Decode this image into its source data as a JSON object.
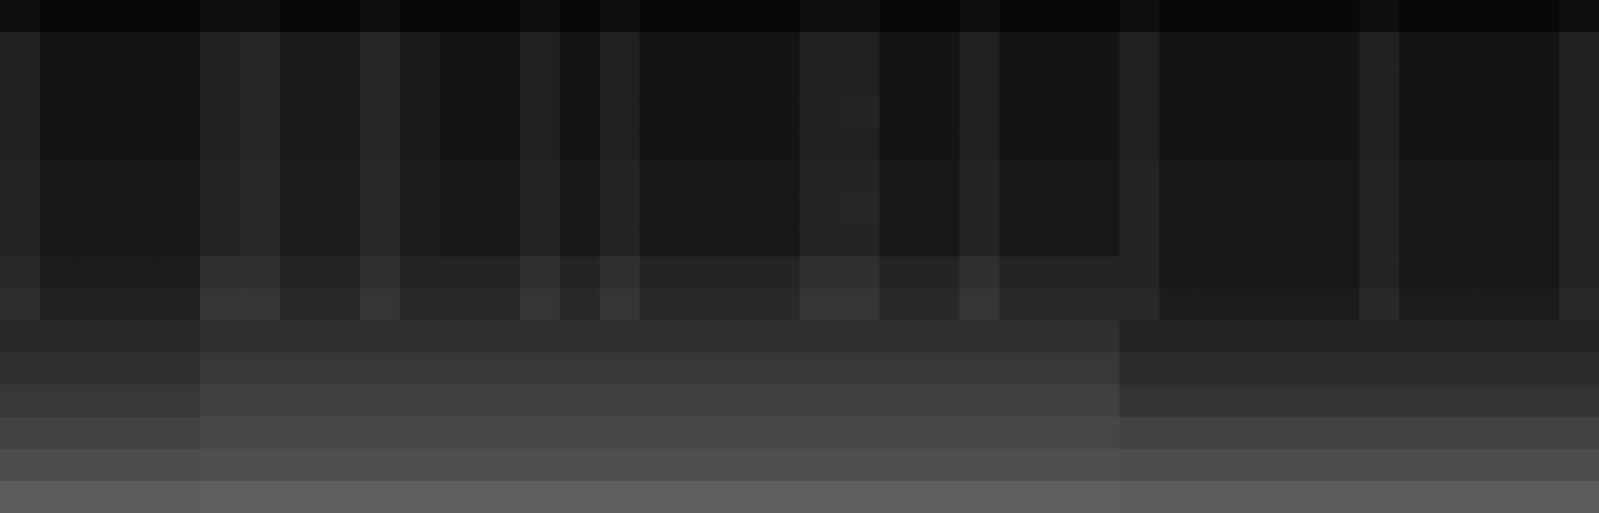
{
  "chart_data": {
    "type": "heatmap",
    "tick_labels": false,
    "grid": false,
    "zlim": [
      0,
      100
    ],
    "cells": [
      [
        6,
        3,
        3,
        3,
        3,
        6,
        6,
        3,
        3,
        6,
        3,
        3,
        3,
        6,
        3,
        6,
        3,
        3,
        3,
        3,
        6,
        6,
        3,
        3,
        6,
        3,
        3,
        3,
        6,
        3,
        3,
        3,
        3,
        3,
        6,
        3,
        3,
        3,
        3,
        6
      ],
      [
        13,
        8,
        8,
        8,
        8,
        13,
        15,
        10,
        10,
        15,
        10,
        8,
        8,
        13,
        8,
        13,
        8,
        8,
        8,
        8,
        13,
        13,
        8,
        8,
        13,
        8,
        8,
        8,
        13,
        8,
        8,
        8,
        8,
        8,
        13,
        8,
        8,
        8,
        8,
        13
      ],
      [
        13,
        8,
        8,
        8,
        8,
        13,
        15,
        10,
        10,
        15,
        10,
        8,
        8,
        13,
        8,
        13,
        8,
        8,
        8,
        8,
        13,
        13,
        8,
        8,
        13,
        8,
        8,
        8,
        13,
        8,
        8,
        8,
        8,
        8,
        13,
        8,
        8,
        8,
        8,
        13
      ],
      [
        13,
        8,
        8,
        8,
        8,
        13,
        15,
        10,
        10,
        15,
        10,
        8,
        8,
        13,
        8,
        13,
        8,
        8,
        8,
        8,
        13,
        14,
        8,
        8,
        13,
        8,
        8,
        8,
        13,
        8,
        8,
        8,
        8,
        8,
        13,
        8,
        8,
        8,
        8,
        13
      ],
      [
        13,
        8,
        8,
        8,
        8,
        13,
        15,
        10,
        10,
        15,
        10,
        8,
        8,
        13,
        8,
        13,
        8,
        8,
        8,
        8,
        13,
        13,
        8,
        8,
        13,
        8,
        8,
        8,
        13,
        8,
        8,
        8,
        8,
        8,
        13,
        8,
        8,
        8,
        8,
        13
      ],
      [
        14,
        9,
        9,
        9,
        9,
        14,
        16,
        11,
        11,
        16,
        11,
        9,
        9,
        14,
        9,
        14,
        9,
        9,
        9,
        9,
        14,
        14,
        9,
        9,
        14,
        9,
        9,
        9,
        14,
        9,
        9,
        9,
        9,
        9,
        14,
        9,
        9,
        9,
        9,
        14
      ],
      [
        14,
        9,
        9,
        9,
        9,
        14,
        16,
        11,
        11,
        16,
        11,
        9,
        9,
        14,
        9,
        14,
        9,
        9,
        9,
        9,
        14,
        15,
        9,
        9,
        14,
        9,
        9,
        9,
        14,
        9,
        9,
        9,
        9,
        9,
        14,
        9,
        9,
        9,
        9,
        14
      ],
      [
        14,
        9,
        9,
        9,
        9,
        14,
        16,
        11,
        11,
        16,
        11,
        9,
        9,
        14,
        9,
        14,
        9,
        9,
        9,
        9,
        14,
        14,
        9,
        9,
        14,
        9,
        9,
        9,
        14,
        9,
        9,
        9,
        9,
        9,
        14,
        9,
        9,
        9,
        9,
        14
      ],
      [
        16,
        11,
        11,
        11,
        11,
        19,
        19,
        14,
        14,
        19,
        14,
        14,
        14,
        19,
        14,
        19,
        14,
        14,
        14,
        14,
        19,
        19,
        14,
        14,
        19,
        14,
        14,
        14,
        14,
        9,
        9,
        9,
        9,
        9,
        14,
        9,
        9,
        9,
        9,
        14
      ],
      [
        18,
        13,
        13,
        13,
        13,
        21,
        21,
        16,
        16,
        21,
        16,
        16,
        16,
        21,
        16,
        21,
        16,
        16,
        16,
        16,
        21,
        21,
        16,
        16,
        21,
        16,
        16,
        16,
        16,
        11,
        11,
        11,
        11,
        11,
        16,
        11,
        11,
        11,
        11,
        16
      ],
      [
        16,
        16,
        16,
        16,
        16,
        19,
        19,
        19,
        19,
        19,
        19,
        19,
        19,
        19,
        19,
        19,
        19,
        19,
        19,
        19,
        19,
        19,
        19,
        19,
        19,
        19,
        19,
        19,
        14,
        14,
        14,
        14,
        14,
        14,
        14,
        14,
        14,
        14,
        14,
        14
      ],
      [
        19,
        19,
        19,
        19,
        19,
        22,
        22,
        22,
        22,
        22,
        22,
        22,
        22,
        22,
        22,
        22,
        22,
        22,
        22,
        22,
        22,
        22,
        22,
        22,
        22,
        22,
        22,
        22,
        17,
        17,
        17,
        17,
        17,
        17,
        17,
        17,
        17,
        17,
        17,
        17
      ],
      [
        22,
        22,
        22,
        22,
        22,
        25,
        25,
        25,
        25,
        25,
        25,
        25,
        25,
        25,
        25,
        25,
        25,
        25,
        25,
        25,
        25,
        25,
        25,
        25,
        25,
        25,
        25,
        25,
        20,
        20,
        20,
        20,
        20,
        20,
        20,
        20,
        20,
        20,
        20,
        20
      ],
      [
        26,
        26,
        26,
        26,
        26,
        28,
        28,
        28,
        28,
        28,
        28,
        28,
        28,
        28,
        28,
        28,
        28,
        28,
        28,
        28,
        28,
        28,
        28,
        28,
        28,
        28,
        28,
        28,
        26,
        26,
        26,
        26,
        26,
        26,
        26,
        26,
        26,
        26,
        26,
        26
      ],
      [
        30,
        30,
        30,
        30,
        30,
        31,
        31,
        31,
        31,
        31,
        31,
        31,
        31,
        31,
        31,
        31,
        31,
        31,
        31,
        31,
        31,
        31,
        31,
        31,
        31,
        31,
        31,
        31,
        30,
        30,
        30,
        30,
        30,
        30,
        30,
        30,
        30,
        30,
        30,
        30
      ],
      [
        36,
        36,
        36,
        36,
        36,
        37,
        37,
        37,
        37,
        37,
        37,
        37,
        37,
        37,
        37,
        37,
        37,
        37,
        37,
        37,
        37,
        37,
        37,
        37,
        37,
        37,
        37,
        37,
        36,
        36,
        36,
        36,
        36,
        36,
        36,
        36,
        36,
        36,
        36,
        36
      ]
    ]
  }
}
